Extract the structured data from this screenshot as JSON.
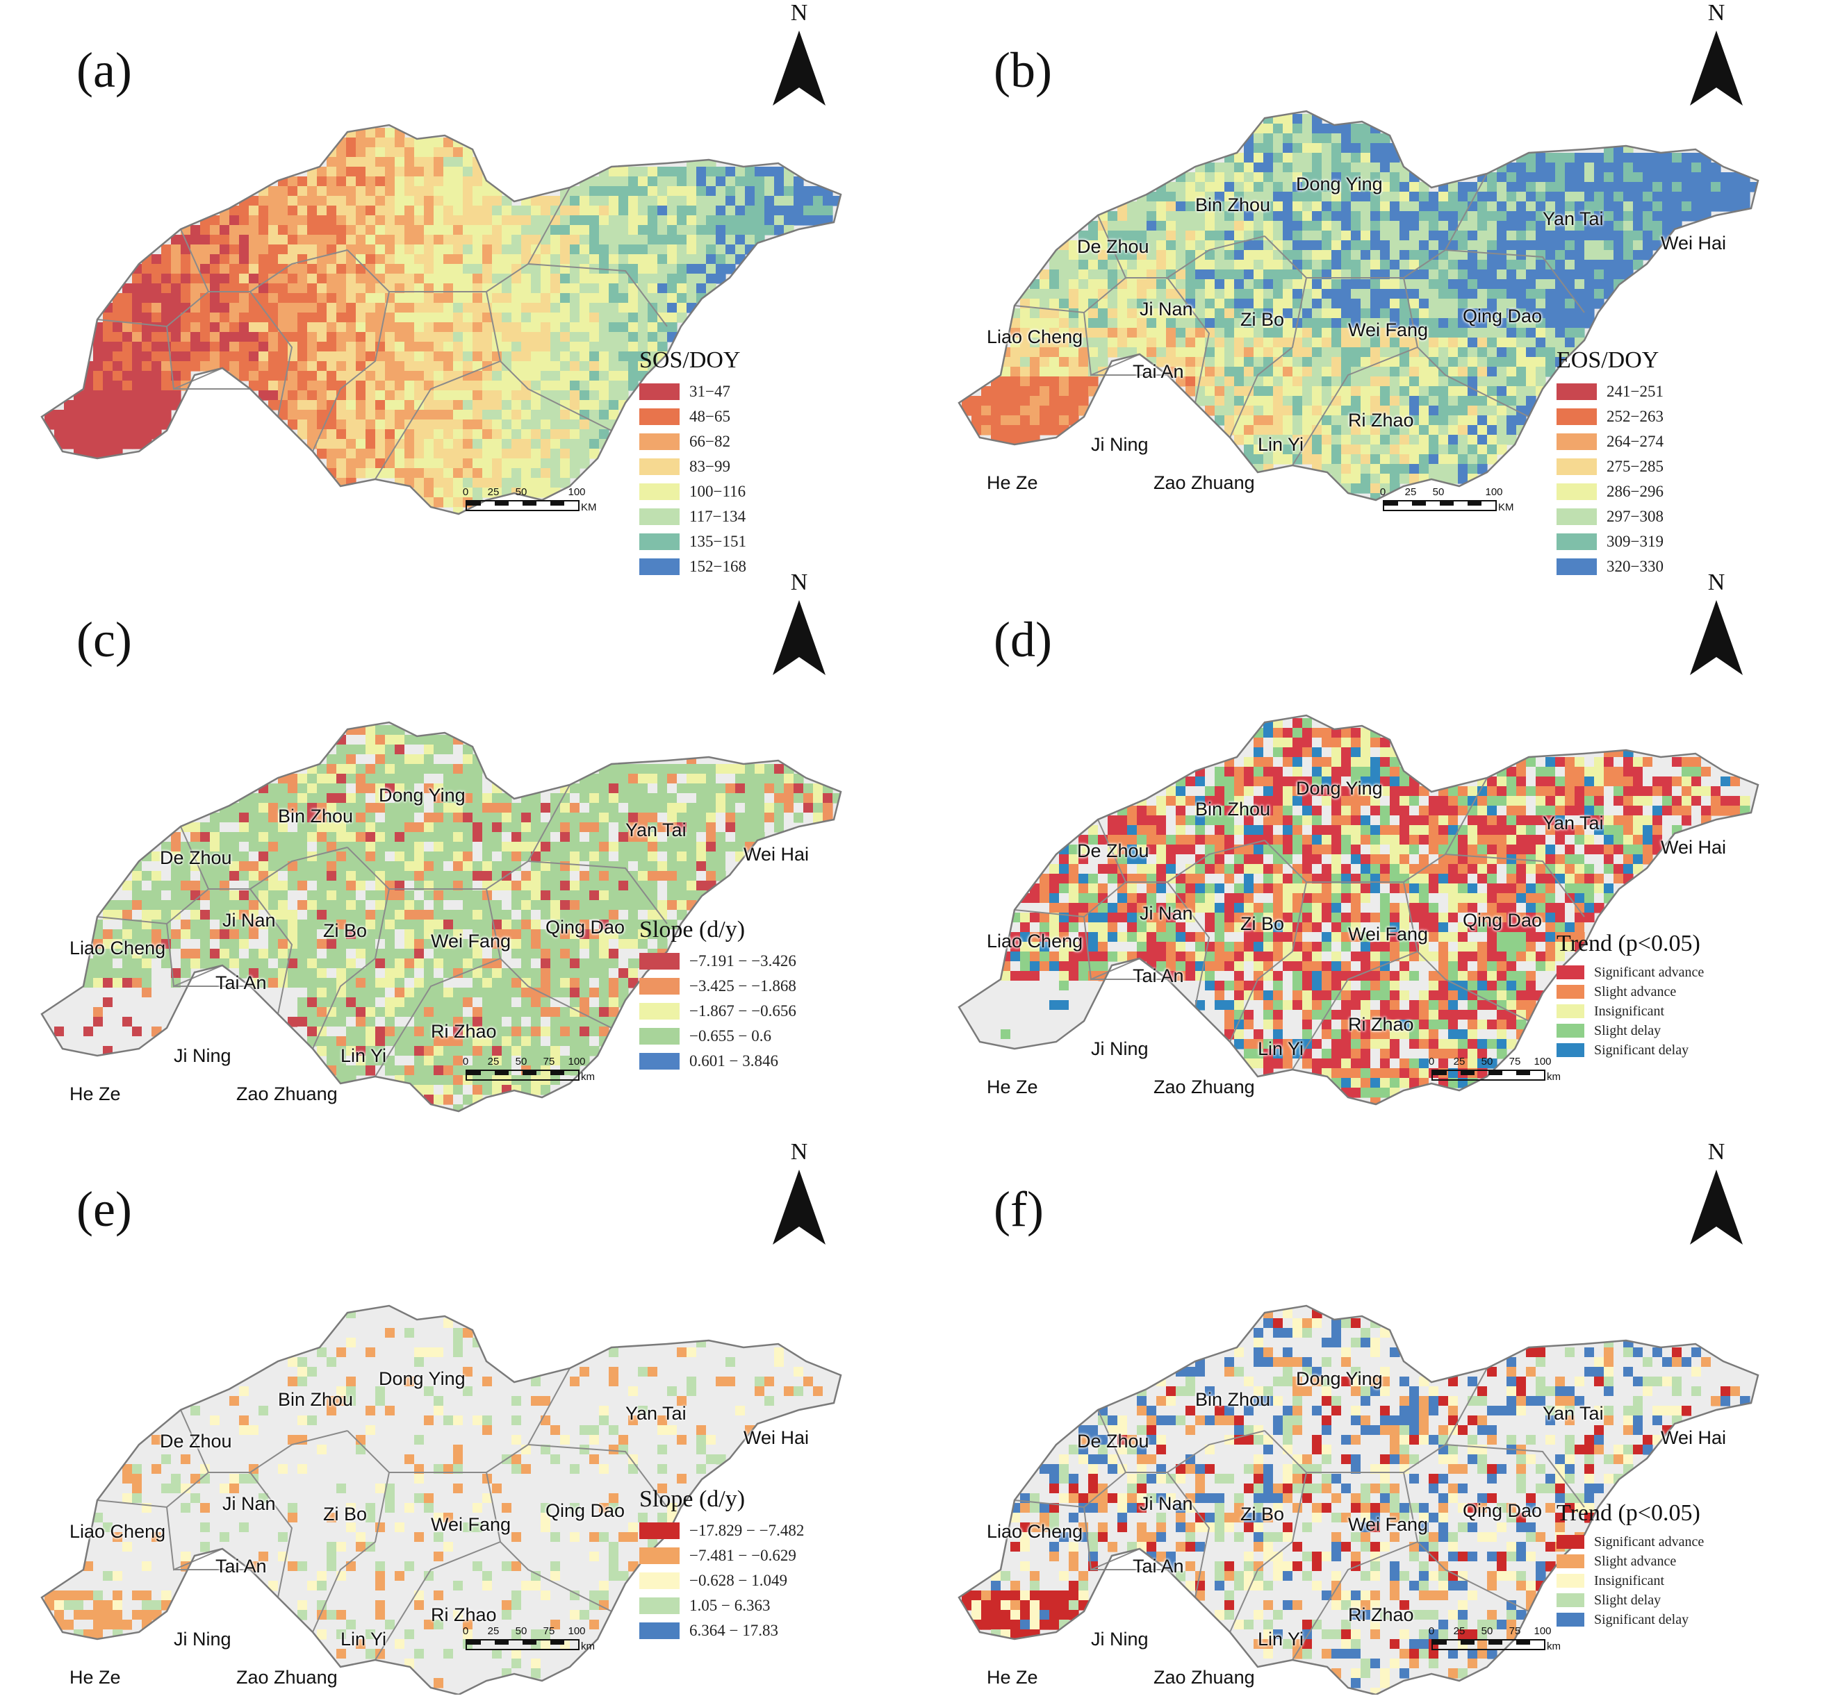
{
  "figure": {
    "panels": [
      {
        "id": "a",
        "label": "(a)",
        "north": "N",
        "map_style": "sos",
        "cities": [],
        "legend": {
          "title": "SOS/DOY",
          "size": "normal",
          "items": [
            {
              "label": "31−47",
              "color": "#c9474f"
            },
            {
              "label": "48−65",
              "color": "#e8744c"
            },
            {
              "label": "66−82",
              "color": "#f2a66a"
            },
            {
              "label": "83−99",
              "color": "#f6d991"
            },
            {
              "label": "100−116",
              "color": "#edf2a3"
            },
            {
              "label": "117−134",
              "color": "#bfe0b0"
            },
            {
              "label": "135−151",
              "color": "#7fbfa9"
            },
            {
              "label": "152−168",
              "color": "#4f82c4"
            }
          ]
        },
        "scale": {
          "ticks": [
            "0",
            "25",
            "50",
            "100"
          ],
          "unit": "KM"
        }
      },
      {
        "id": "b",
        "label": "(b)",
        "north": "N",
        "map_style": "eos",
        "cities": [
          "Dong Ying",
          "Bin Zhou",
          "De Zhou",
          "Yan Tai",
          "Wei Hai",
          "Ji Nan",
          "Zi Bo",
          "Wei Fang",
          "Qing Dao",
          "Liao Cheng",
          "Tai An",
          "Ri Zhao",
          "Ji Ning",
          "Lin Yi",
          "He Ze",
          "Zao Zhuang"
        ],
        "legend": {
          "title": "EOS/DOY",
          "size": "normal",
          "items": [
            {
              "label": "241−251",
              "color": "#c9474f"
            },
            {
              "label": "252−263",
              "color": "#e8744c"
            },
            {
              "label": "264−274",
              "color": "#f2a66a"
            },
            {
              "label": "275−285",
              "color": "#f6d991"
            },
            {
              "label": "286−296",
              "color": "#edf2a3"
            },
            {
              "label": "297−308",
              "color": "#bfe0b0"
            },
            {
              "label": "309−319",
              "color": "#7fbfa9"
            },
            {
              "label": "320−330",
              "color": "#4f82c4"
            }
          ]
        },
        "scale": {
          "ticks": [
            "0",
            "25",
            "50",
            "100"
          ],
          "unit": "KM"
        }
      },
      {
        "id": "c",
        "label": "(c)",
        "north": "N",
        "map_style": "slope_green",
        "cities": [
          "Dong Ying",
          "Bin Zhou",
          "De Zhou",
          "Yan Tai",
          "Wei Hai",
          "Ji Nan",
          "Zi Bo",
          "Wei Fang",
          "Qing Dao",
          "Liao Cheng",
          "Tai An",
          "Ri Zhao",
          "Ji Ning",
          "Lin Yi",
          "He Ze",
          "Zao Zhuang"
        ],
        "legend": {
          "title": "Slope (d/y)",
          "size": "normal",
          "items": [
            {
              "label": "−7.191 − −3.426",
              "color": "#c9474f"
            },
            {
              "label": "−3.425 − −1.868",
              "color": "#ee9460"
            },
            {
              "label": "−1.867 − −0.656",
              "color": "#eef3a6"
            },
            {
              "label": "−0.655 − 0.6",
              "color": "#a8d49a"
            },
            {
              "label": "0.601 − 3.846",
              "color": "#4f82c4"
            }
          ]
        },
        "scale": {
          "ticks": [
            "0",
            "25",
            "50",
            "75",
            "100"
          ],
          "unit": "km"
        }
      },
      {
        "id": "d",
        "label": "(d)",
        "north": "N",
        "map_style": "trend_red",
        "cities": [
          "Dong Ying",
          "Bin Zhou",
          "De Zhou",
          "Yan Tai",
          "Wei Hai",
          "Ji Nan",
          "Zi Bo",
          "Wei Fang",
          "Qing Dao",
          "Liao Cheng",
          "Tai An",
          "Ri Zhao",
          "Ji Ning",
          "Lin Yi",
          "He Ze",
          "Zao Zhuang"
        ],
        "legend": {
          "title": "Trend (p<0.05)",
          "size": "small",
          "items": [
            {
              "label": "Significant advance",
              "color": "#d63a47"
            },
            {
              "label": "Slight advance",
              "color": "#f08a55"
            },
            {
              "label": "Insignificant",
              "color": "#eef3a6"
            },
            {
              "label": "Slight delay",
              "color": "#8fd08a"
            },
            {
              "label": "Significant delay",
              "color": "#2e86c1"
            }
          ]
        },
        "scale": {
          "ticks": [
            "0",
            "25",
            "50",
            "75",
            "100"
          ],
          "unit": "km"
        }
      },
      {
        "id": "e",
        "label": "(e)",
        "north": "N",
        "map_style": "slope_gray",
        "cities": [
          "Dong Ying",
          "Bin Zhou",
          "De Zhou",
          "Yan Tai",
          "Wei Hai",
          "Ji Nan",
          "Zi Bo",
          "Wei Fang",
          "Qing Dao",
          "Liao Cheng",
          "Tai An",
          "Ri Zhao",
          "Ji Ning",
          "Lin Yi",
          "He Ze",
          "Zao Zhuang"
        ],
        "legend": {
          "title": "Slope (d/y)",
          "size": "normal",
          "items": [
            {
              "label": "−17.829 − −7.482",
              "color": "#cc2a2a"
            },
            {
              "label": "−7.481 − −0.629",
              "color": "#f2a462"
            },
            {
              "label": "−0.628 − 1.049",
              "color": "#fdf7c5"
            },
            {
              "label": "1.05 − 6.363",
              "color": "#bddfb0"
            },
            {
              "label": "6.364 − 17.83",
              "color": "#4a7fc0"
            }
          ]
        },
        "scale": {
          "ticks": [
            "0",
            "25",
            "50",
            "75",
            "100"
          ],
          "unit": "km"
        }
      },
      {
        "id": "f",
        "label": "(f)",
        "north": "N",
        "map_style": "trend_mixed",
        "cities": [
          "Dong Ying",
          "Bin Zhou",
          "De Zhou",
          "Yan Tai",
          "Wei Hai",
          "Ji Nan",
          "Zi Bo",
          "Wei Fang",
          "Qing Dao",
          "Liao Cheng",
          "Tai An",
          "Ri Zhao",
          "Ji Ning",
          "Lin Yi",
          "He Ze",
          "Zao Zhuang"
        ],
        "legend": {
          "title": "Trend (p<0.05)",
          "size": "small",
          "items": [
            {
              "label": "Significant advance",
              "color": "#cc2a2a"
            },
            {
              "label": "Slight advance",
              "color": "#f2a462"
            },
            {
              "label": "Insignificant",
              "color": "#fdf7c5"
            },
            {
              "label": "Slight delay",
              "color": "#bddfb0"
            },
            {
              "label": "Significant delay",
              "color": "#4a7fc0"
            }
          ]
        },
        "scale": {
          "ticks": [
            "0",
            "25",
            "50",
            "75",
            "100"
          ],
          "unit": "km"
        }
      }
    ]
  }
}
